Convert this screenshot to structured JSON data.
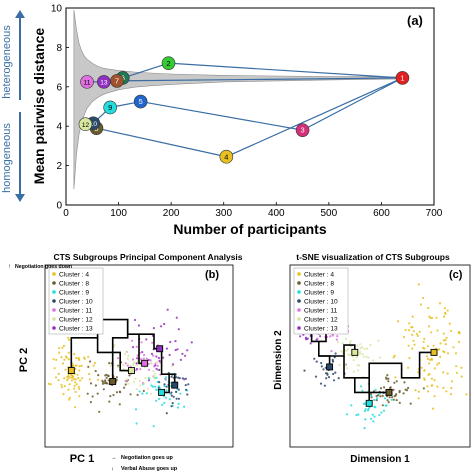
{
  "chart_data": [
    {
      "type": "line",
      "panel_label": "(a)",
      "xlabel": "Number of participants",
      "ylabel": "Mean pairwise distance",
      "xlim": [
        0,
        700
      ],
      "ylim": [
        0,
        10
      ],
      "xticks": [
        0,
        100,
        200,
        300,
        400,
        500,
        600,
        700
      ],
      "yticks": [
        0,
        2,
        4,
        6,
        8,
        10
      ],
      "side_labels": {
        "top": "heterogeneous",
        "bottom": "homogeneous"
      },
      "points": [
        {
          "label": "1",
          "x": 640,
          "y": 6.45,
          "color": "#e02020"
        },
        {
          "label": "2",
          "x": 195,
          "y": 7.2,
          "color": "#33cc33"
        },
        {
          "label": "3",
          "x": 450,
          "y": 3.8,
          "color": "#d4307a"
        },
        {
          "label": "4",
          "x": 305,
          "y": 2.45,
          "color": "#e8c020"
        },
        {
          "label": "5",
          "x": 142,
          "y": 5.25,
          "color": "#2266cc"
        },
        {
          "label": "6",
          "x": 108,
          "y": 6.45,
          "color": "#227755"
        },
        {
          "label": "7",
          "x": 97,
          "y": 6.3,
          "color": "#a0522d"
        },
        {
          "label": "8",
          "x": 58,
          "y": 3.9,
          "color": "#6b5a2a"
        },
        {
          "label": "9",
          "x": 84,
          "y": 4.95,
          "color": "#22dddd"
        },
        {
          "label": "10",
          "x": 52,
          "y": 4.15,
          "color": "#2b4a6a"
        },
        {
          "label": "11",
          "x": 40,
          "y": 6.25,
          "color": "#e070e0"
        },
        {
          "label": "12",
          "x": 37,
          "y": 4.1,
          "color": "#d8e8a0"
        },
        {
          "label": "13",
          "x": 72,
          "y": 6.25,
          "color": "#9030c0"
        }
      ],
      "edges": [
        [
          "1",
          "2"
        ],
        [
          "2",
          "6"
        ],
        [
          "1",
          "3"
        ],
        [
          "3",
          "5"
        ],
        [
          "5",
          "9"
        ],
        [
          "9",
          "10"
        ],
        [
          "1",
          "4"
        ],
        [
          "4",
          "8"
        ],
        [
          "1",
          "7"
        ],
        [
          "7",
          "13"
        ],
        [
          "13",
          "11"
        ],
        [
          "10",
          "12"
        ]
      ],
      "band": {
        "x": [
          15,
          20,
          25,
          30,
          35,
          40,
          50,
          60,
          70,
          80,
          100,
          130,
          160,
          200,
          300,
          400,
          500,
          640
        ],
        "upper": [
          9.9,
          8.9,
          8.2,
          7.8,
          7.55,
          7.4,
          7.2,
          7.05,
          6.95,
          6.9,
          6.82,
          6.75,
          6.7,
          6.65,
          6.58,
          6.55,
          6.52,
          6.5
        ],
        "lower": [
          0.8,
          2.6,
          3.6,
          4.2,
          4.6,
          4.9,
          5.25,
          5.45,
          5.6,
          5.7,
          5.85,
          5.98,
          6.05,
          6.12,
          6.25,
          6.3,
          6.35,
          6.4
        ]
      }
    },
    {
      "type": "scatter",
      "title": "CTS Subgroups Principal Component Analysis",
      "panel_label": "(b)",
      "xlabel": "PC 1",
      "ylabel": "PC 2",
      "arrow_labels": [
        "Negotiation goes down",
        "Negotiation goes up",
        "Verbal Abuse goes up"
      ],
      "legend": [
        "Cluster :  4",
        "Cluster :  8",
        "Cluster :  9",
        "Cluster : 10",
        "Cluster : 11",
        "Cluster : 12",
        "Cluster : 13"
      ],
      "xlim": [
        0,
        100
      ],
      "ylim": [
        0,
        100
      ],
      "centroids": [
        {
          "label": "4",
          "x": 14,
          "y": 42
        },
        {
          "label": "8",
          "x": 36,
          "y": 36
        },
        {
          "label": "9",
          "x": 62,
          "y": 30
        },
        {
          "label": "10",
          "x": 69,
          "y": 34
        },
        {
          "label": "11",
          "x": 53,
          "y": 46
        },
        {
          "label": "12",
          "x": 46,
          "y": 42
        },
        {
          "label": "13",
          "x": 61,
          "y": 54
        }
      ],
      "tree": [
        [
          [
            14,
            42
          ],
          [
            14,
            60
          ],
          [
            28,
            60
          ],
          [
            28,
            70
          ],
          [
            44,
            70
          ],
          [
            44,
            60
          ],
          [
            36,
            60
          ],
          [
            36,
            36
          ]
        ],
        [
          [
            44,
            70
          ],
          [
            44,
            62
          ],
          [
            50,
            62
          ],
          [
            50,
            46
          ],
          [
            53,
            46
          ]
        ],
        [
          [
            50,
            62
          ],
          [
            58,
            62
          ],
          [
            58,
            54
          ],
          [
            61,
            54
          ]
        ],
        [
          [
            28,
            60
          ],
          [
            28,
            52
          ],
          [
            40,
            52
          ],
          [
            40,
            42
          ],
          [
            46,
            42
          ]
        ],
        [
          [
            58,
            54
          ],
          [
            62,
            54
          ],
          [
            62,
            40
          ],
          [
            66,
            40
          ],
          [
            66,
            30
          ],
          [
            62,
            30
          ]
        ],
        [
          [
            66,
            40
          ],
          [
            69,
            40
          ],
          [
            69,
            34
          ]
        ]
      ]
    },
    {
      "type": "scatter",
      "title": "t-SNE visualization of CTS Subgroups",
      "panel_label": "(c)",
      "xlabel": "Dimension 1",
      "ylabel": "Dimension 2",
      "legend": [
        "Cluster :  4",
        "Cluster :  8",
        "Cluster :  9",
        "Cluster : 10",
        "Cluster : 11",
        "Cluster : 12",
        "Cluster : 13"
      ],
      "xlim": [
        0,
        100
      ],
      "ylim": [
        0,
        100
      ],
      "centroids": [
        {
          "label": "4",
          "x": 80,
          "y": 52
        },
        {
          "label": "8",
          "x": 55,
          "y": 30
        },
        {
          "label": "9",
          "x": 44,
          "y": 24
        },
        {
          "label": "10",
          "x": 22,
          "y": 44
        },
        {
          "label": "11",
          "x": 20,
          "y": 66
        },
        {
          "label": "12",
          "x": 36,
          "y": 52
        },
        {
          "label": "13",
          "x": 12,
          "y": 64
        }
      ],
      "tree": [
        [
          [
            12,
            64
          ],
          [
            12,
            58
          ],
          [
            20,
            58
          ],
          [
            20,
            66
          ]
        ],
        [
          [
            16,
            58
          ],
          [
            16,
            50
          ],
          [
            22,
            50
          ],
          [
            22,
            44
          ]
        ],
        [
          [
            16,
            50
          ],
          [
            30,
            50
          ],
          [
            30,
            56
          ],
          [
            36,
            56
          ],
          [
            36,
            52
          ]
        ],
        [
          [
            30,
            50
          ],
          [
            30,
            38
          ],
          [
            44,
            38
          ],
          [
            44,
            24
          ]
        ],
        [
          [
            36,
            38
          ],
          [
            36,
            30
          ],
          [
            55,
            30
          ]
        ],
        [
          [
            44,
            38
          ],
          [
            44,
            46
          ],
          [
            62,
            46
          ],
          [
            62,
            38
          ],
          [
            72,
            38
          ],
          [
            72,
            52
          ],
          [
            80,
            52
          ]
        ]
      ]
    }
  ],
  "colors": {
    "cluster_4": "#e8c020",
    "cluster_8": "#6b5a2a",
    "cluster_9": "#22dddd",
    "cluster_10": "#2b4a6a",
    "cluster_11": "#e070e0",
    "cluster_12": "#d8e8a0",
    "cluster_13": "#9030c0",
    "band": "#c8c8c8",
    "edge": "#3a6ea5"
  }
}
